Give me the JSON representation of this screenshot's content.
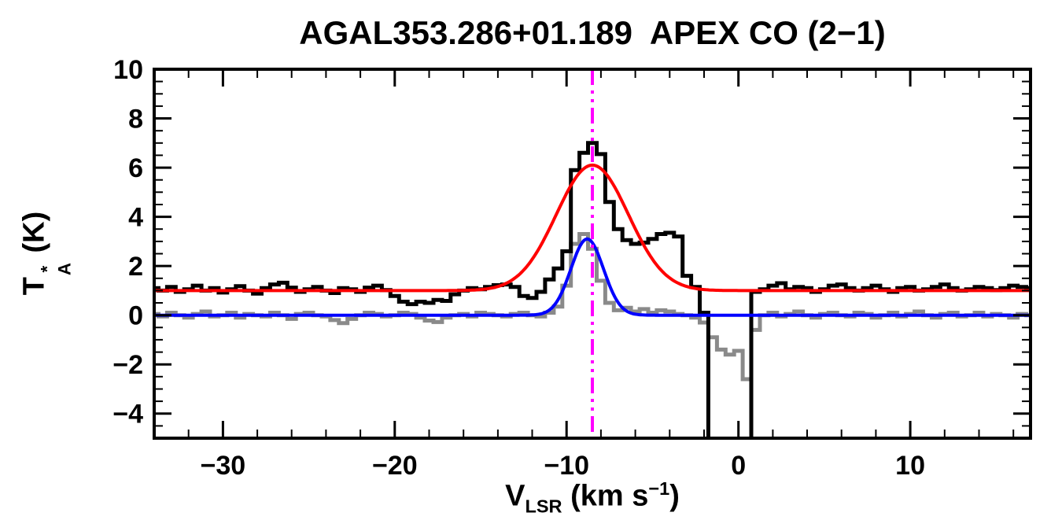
{
  "title": "AGAL353.286+01.189  APEX CO (2−1)",
  "labels": {
    "y_base": "T",
    "y_sup": "*",
    "y_sub": "A",
    "y_unit": " (K)",
    "x_base": "V",
    "x_sub": "LSR",
    "x_unit_pre": " (km s",
    "x_sup": "−1",
    "x_close": ")"
  },
  "chart_data": {
    "type": "line",
    "title": "AGAL353.286+01.189  APEX CO (2−1)",
    "xlabel": "V_LSR (km s^-1)",
    "ylabel": "T_A^* (K)",
    "xlim": [
      -34,
      17
    ],
    "ylim": [
      -5,
      10
    ],
    "grid": false,
    "background": "#FFFFFF",
    "x_ticks": {
      "values": [
        -30,
        -20,
        -10,
        0,
        10
      ],
      "labels": [
        "−30",
        "−20",
        "−10",
        "0",
        "10"
      ],
      "minor_step": 2
    },
    "y_ticks": {
      "values": [
        -4,
        -2,
        0,
        2,
        4,
        6,
        8,
        10
      ],
      "labels": [
        "−4",
        "−2",
        "0",
        "2",
        "4",
        "6",
        "8",
        "10"
      ],
      "minor_step": 0.5
    },
    "vline": {
      "x": -8.5,
      "color": "#FF00FF",
      "style": "dash-dot-dot",
      "label": "systemic velocity marker"
    },
    "series": [
      {
        "name": "gray-spectrum-histogram",
        "color": "#8A8A8A",
        "style": "histogram",
        "width": 5,
        "x_start": -34,
        "dx": 0.5,
        "values": [
          0.05,
          -0.05,
          0.1,
          0.0,
          -0.1,
          0.05,
          0.15,
          -0.05,
          0.0,
          0.1,
          -0.1,
          0.05,
          0.0,
          -0.05,
          0.1,
          0.0,
          -0.15,
          0.05,
          0.1,
          0.0,
          -0.05,
          -0.2,
          -0.32,
          -0.15,
          0.0,
          0.1,
          0.05,
          -0.05,
          0.0,
          0.1,
          0.05,
          -0.1,
          -0.22,
          -0.28,
          -0.1,
          0.0,
          0.05,
          -0.05,
          0.1,
          0.05,
          0.0,
          -0.05,
          0.05,
          0.1,
          0.0,
          -0.05,
          0.1,
          0.35,
          1.2,
          2.9,
          3.3,
          2.7,
          1.4,
          0.5,
          0.2,
          0.3,
          0.15,
          0.25,
          0.1,
          0.2,
          0.15,
          0.05,
          0.0,
          -0.1,
          -0.3,
          -0.9,
          -1.4,
          -1.6,
          -1.45,
          -2.6,
          -0.6,
          0.0,
          0.1,
          -0.05,
          0.05,
          0.15,
          0.0,
          -0.1,
          0.05,
          0.1,
          0.0,
          -0.05,
          0.1,
          0.05,
          -0.1,
          0.0,
          0.1,
          -0.05,
          0.05,
          0.15,
          0.0,
          -0.1,
          0.05,
          0.1,
          -0.05,
          0.0,
          0.1,
          -0.05,
          0.05,
          0.0,
          -0.1,
          0.05,
          0.0
        ]
      },
      {
        "name": "black-spectrum-histogram",
        "color": "#000000",
        "style": "histogram",
        "width": 5,
        "x_start": -34,
        "dx": 0.5,
        "values": [
          1.1,
          1.0,
          1.15,
          0.95,
          1.05,
          1.2,
          1.0,
          1.1,
          0.92,
          1.05,
          1.18,
          1.0,
          0.88,
          1.1,
          1.25,
          1.32,
          1.12,
          0.95,
          1.05,
          1.15,
          1.0,
          0.9,
          1.1,
          1.05,
          0.95,
          1.12,
          1.2,
          1.02,
          0.78,
          0.55,
          0.45,
          0.55,
          0.5,
          0.62,
          0.58,
          0.85,
          1.0,
          1.1,
          1.05,
          1.15,
          1.22,
          1.25,
          1.15,
          0.78,
          0.7,
          0.95,
          1.45,
          1.9,
          2.6,
          5.9,
          6.6,
          7.0,
          6.55,
          4.6,
          3.5,
          3.05,
          2.9,
          2.95,
          3.1,
          3.3,
          3.35,
          3.2,
          1.6,
          1.15,
          0.1,
          -6.0,
          -6.0,
          -6.0,
          -6.0,
          -6.0,
          0.95,
          1.05,
          1.2,
          1.3,
          1.05,
          1.15,
          1.1,
          0.95,
          1.05,
          1.2,
          1.25,
          1.1,
          1.0,
          1.1,
          1.2,
          1.05,
          0.95,
          1.1,
          1.15,
          1.0,
          1.05,
          1.15,
          1.25,
          1.1,
          1.0,
          1.05,
          1.15,
          1.1,
          1.02,
          1.1,
          1.2,
          1.15,
          1.1
        ]
      },
      {
        "name": "blue-gaussian-fit",
        "color": "#0000FF",
        "style": "gaussian",
        "width": 4,
        "baseline": 0.0,
        "amplitude": 3.1,
        "center": -8.8,
        "sigma": 0.95
      },
      {
        "name": "red-gaussian-fit",
        "color": "#FF0000",
        "style": "gaussian",
        "width": 4,
        "baseline": 1.0,
        "amplitude": 5.1,
        "center": -8.5,
        "sigma": 2.1
      }
    ]
  }
}
